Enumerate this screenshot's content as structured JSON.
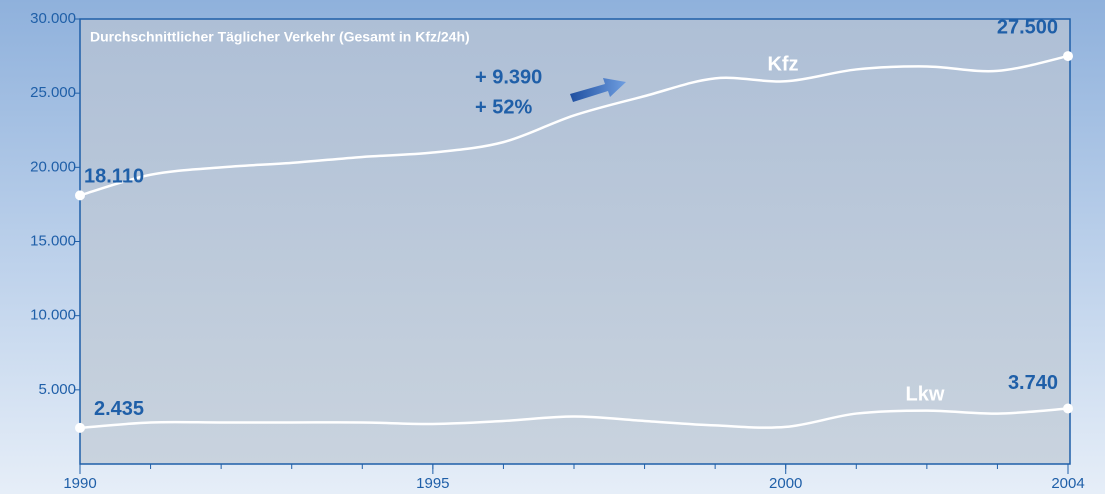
{
  "chart_data": {
    "type": "line",
    "title": "Durchschnittlicher Täglicher Verkehr (Gesamt in Kfz/24h)",
    "x": [
      1990,
      1991,
      1992,
      1993,
      1994,
      1995,
      1996,
      1997,
      1998,
      1999,
      2000,
      2001,
      2002,
      2003,
      2004
    ],
    "series": [
      {
        "name": "Kfz",
        "color": "#ffffff",
        "values": [
          18110,
          19500,
          20000,
          20300,
          20700,
          21000,
          21700,
          23500,
          24800,
          26000,
          25800,
          26600,
          26800,
          26500,
          27500
        ],
        "value_labels": [
          "18.110",
          null,
          null,
          null,
          null,
          null,
          null,
          null,
          null,
          null,
          null,
          null,
          null,
          null,
          "27.500"
        ]
      },
      {
        "name": "Lkw",
        "color": "#ffffff",
        "values": [
          2435,
          2800,
          2800,
          2800,
          2800,
          2700,
          2900,
          3200,
          2900,
          2600,
          2500,
          3400,
          3600,
          3400,
          3740
        ],
        "value_labels": [
          "2.435",
          null,
          null,
          null,
          null,
          null,
          null,
          null,
          null,
          null,
          null,
          null,
          null,
          null,
          "3.740"
        ]
      }
    ],
    "annotations": [
      "+ 9.390",
      "+ 52%"
    ],
    "xlim": [
      1990,
      2004
    ],
    "xticks": [
      1990,
      1995,
      2000,
      2004
    ],
    "ylim": [
      0,
      30000
    ],
    "yticks": [
      {
        "value": 5000,
        "label": "5.000"
      },
      {
        "value": 10000,
        "label": "10.000"
      },
      {
        "value": 15000,
        "label": "15.000"
      },
      {
        "value": 20000,
        "label": "20.000"
      },
      {
        "value": 25000,
        "label": "25.000"
      },
      {
        "value": 30000,
        "label": "30.000"
      }
    ]
  }
}
